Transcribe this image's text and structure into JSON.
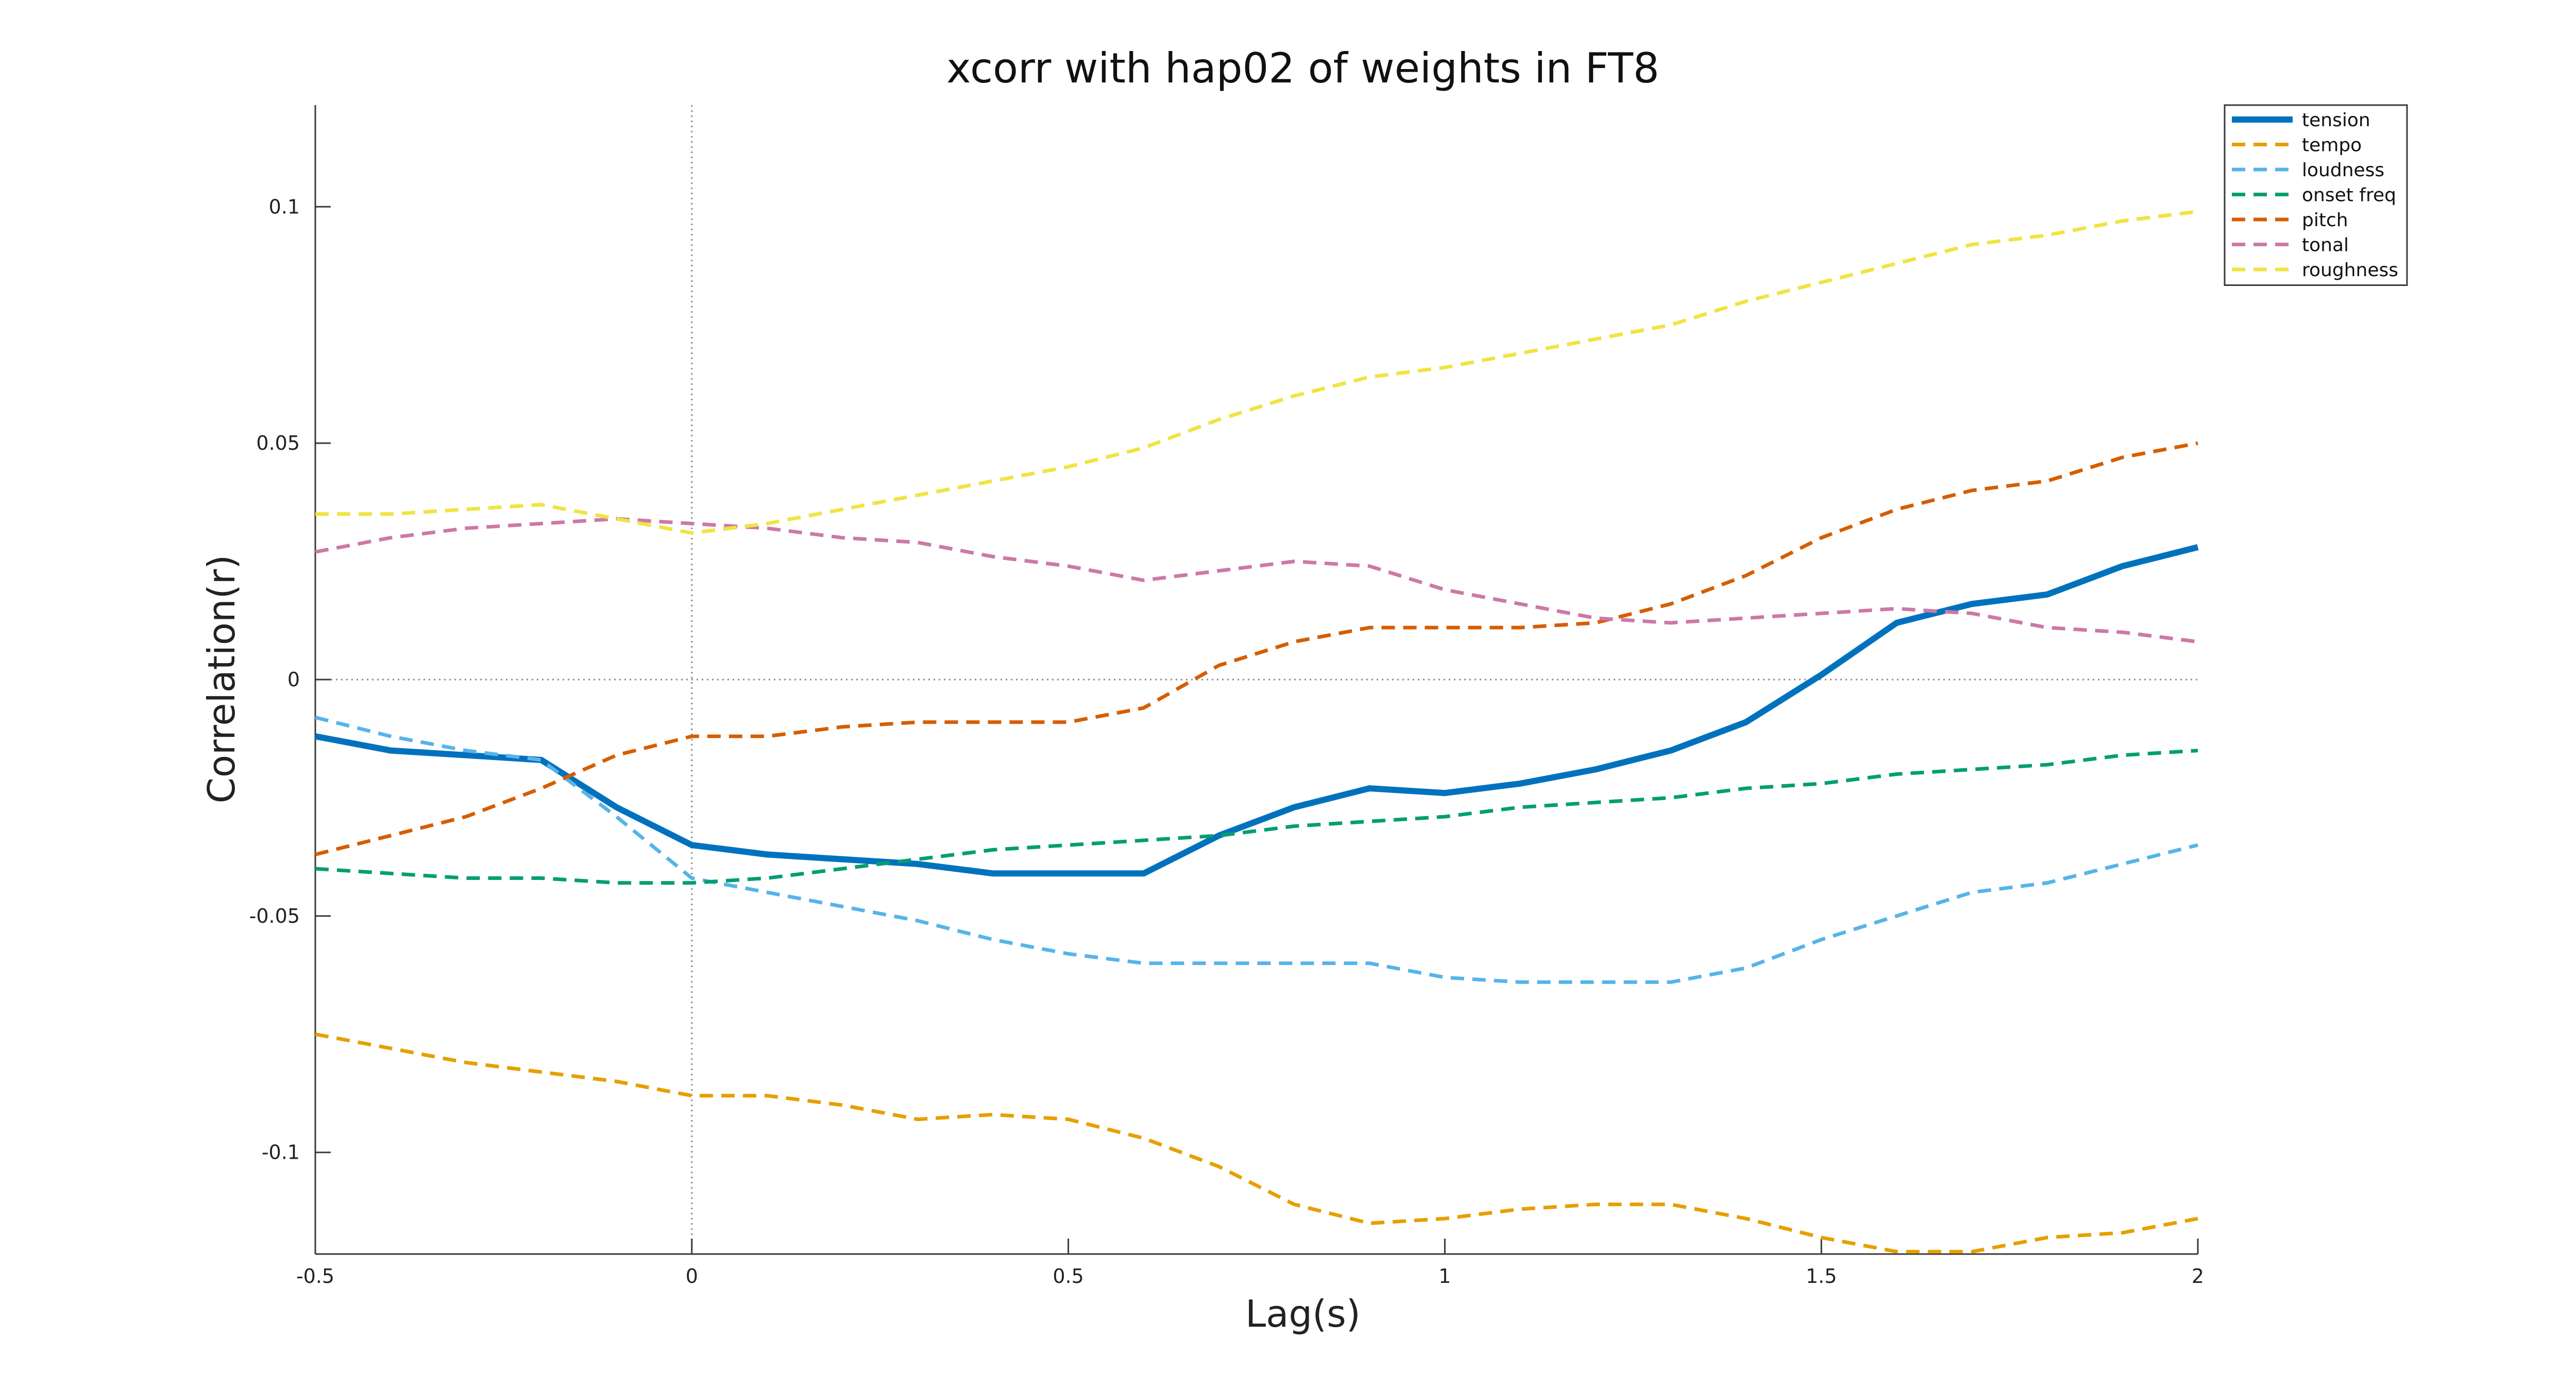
{
  "chart_data": {
    "type": "line",
    "title": "xcorr with hap02 of weights in FT8",
    "xlabel": "Lag(s)",
    "ylabel": "Correlation(r)",
    "xlim": [
      -0.5,
      2
    ],
    "ylim": [
      -0.1215,
      0.1215
    ],
    "xticks": [
      -0.5,
      0,
      0.5,
      1,
      1.5,
      2
    ],
    "xtick_labels": [
      "-0.5",
      "0",
      "0.5",
      "1",
      "1.5",
      "2"
    ],
    "yticks": [
      0.1,
      0.05,
      0,
      -0.05,
      -0.1
    ],
    "ytick_labels": [
      "0.1",
      "0.05",
      "0",
      "-0.05",
      "-0.1"
    ],
    "grid": false,
    "reference_lines": {
      "x": 0,
      "y": 0,
      "style": "dotted"
    },
    "legend_position": "top-right",
    "x": [
      -0.5,
      -0.4,
      -0.3,
      -0.2,
      -0.1,
      0,
      0.1,
      0.2,
      0.3,
      0.4,
      0.5,
      0.6,
      0.7,
      0.8,
      0.9,
      1,
      1.1,
      1.2,
      1.3,
      1.4,
      1.5,
      1.6,
      1.7,
      1.8,
      1.9,
      2
    ],
    "series": [
      {
        "name": "tension",
        "color": "#0072bd",
        "style": "solid",
        "values": [
          -0.012,
          -0.015,
          -0.016,
          -0.017,
          -0.027,
          -0.035,
          -0.037,
          -0.038,
          -0.039,
          -0.041,
          -0.041,
          -0.041,
          -0.033,
          -0.027,
          -0.023,
          -0.024,
          -0.022,
          -0.019,
          -0.015,
          -0.009,
          0.001,
          0.012,
          0.016,
          0.018,
          0.024,
          0.028
        ]
      },
      {
        "name": "tempo",
        "color": "#e69f00",
        "style": "dashed",
        "values": [
          -0.075,
          -0.078,
          -0.081,
          -0.083,
          -0.085,
          -0.088,
          -0.088,
          -0.09,
          -0.093,
          -0.092,
          -0.093,
          -0.097,
          -0.103,
          -0.111,
          -0.115,
          -0.114,
          -0.112,
          -0.111,
          -0.111,
          -0.114,
          -0.118,
          -0.121,
          -0.121,
          -0.118,
          -0.117,
          -0.114
        ]
      },
      {
        "name": "loudness",
        "color": "#56b4e9",
        "style": "dashed",
        "values": [
          -0.008,
          -0.012,
          -0.015,
          -0.017,
          -0.029,
          -0.042,
          -0.045,
          -0.048,
          -0.051,
          -0.055,
          -0.058,
          -0.06,
          -0.06,
          -0.06,
          -0.06,
          -0.063,
          -0.064,
          -0.064,
          -0.064,
          -0.061,
          -0.055,
          -0.05,
          -0.045,
          -0.043,
          -0.039,
          -0.035
        ]
      },
      {
        "name": "onset freq",
        "color": "#009e73",
        "style": "dashed",
        "values": [
          -0.04,
          -0.041,
          -0.042,
          -0.042,
          -0.043,
          -0.043,
          -0.042,
          -0.04,
          -0.038,
          -0.036,
          -0.035,
          -0.034,
          -0.033,
          -0.031,
          -0.03,
          -0.029,
          -0.027,
          -0.026,
          -0.025,
          -0.023,
          -0.022,
          -0.02,
          -0.019,
          -0.018,
          -0.016,
          -0.015
        ]
      },
      {
        "name": "pitch",
        "color": "#d55e00",
        "style": "dashed",
        "values": [
          -0.037,
          -0.033,
          -0.029,
          -0.023,
          -0.016,
          -0.012,
          -0.012,
          -0.01,
          -0.009,
          -0.009,
          -0.009,
          -0.006,
          0.003,
          0.008,
          0.011,
          0.011,
          0.011,
          0.012,
          0.016,
          0.022,
          0.03,
          0.036,
          0.04,
          0.042,
          0.047,
          0.05
        ]
      },
      {
        "name": "tonal",
        "color": "#cc79a7",
        "style": "dashed",
        "values": [
          0.027,
          0.03,
          0.032,
          0.033,
          0.034,
          0.033,
          0.032,
          0.03,
          0.029,
          0.026,
          0.024,
          0.021,
          0.023,
          0.025,
          0.024,
          0.019,
          0.016,
          0.013,
          0.012,
          0.013,
          0.014,
          0.015,
          0.014,
          0.011,
          0.01,
          0.008
        ]
      },
      {
        "name": "roughness",
        "color": "#f0e442",
        "style": "dashed",
        "values": [
          0.035,
          0.035,
          0.036,
          0.037,
          0.034,
          0.031,
          0.033,
          0.036,
          0.039,
          0.042,
          0.045,
          0.049,
          0.055,
          0.06,
          0.064,
          0.066,
          0.069,
          0.072,
          0.075,
          0.08,
          0.084,
          0.088,
          0.092,
          0.094,
          0.097,
          0.099
        ]
      }
    ]
  }
}
